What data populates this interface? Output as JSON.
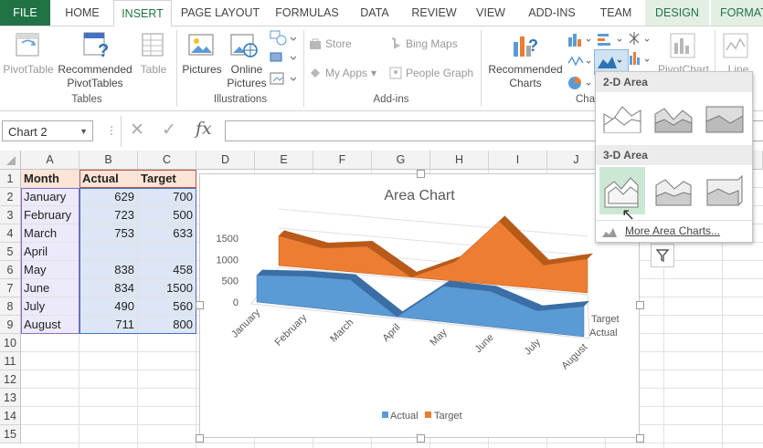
{
  "tabs": [
    "FILE",
    "HOME",
    "INSERT",
    "PAGE LAYOUT",
    "FORMULAS",
    "DATA",
    "REVIEW",
    "VIEW",
    "ADD-INS",
    "TEAM",
    "DESIGN",
    "FORMAT"
  ],
  "ribbon": {
    "tables": {
      "pivot": "PivotTable",
      "recommended_line1": "Recommended",
      "recommended_line2": "PivotTables",
      "table": "Table",
      "group": "Tables"
    },
    "illustrations": {
      "pictures": "Pictures",
      "online_line1": "Online",
      "online_line2": "Pictures",
      "group": "Illustrations"
    },
    "addins": {
      "store": "Store",
      "my_addins": "My Apps",
      "bing_maps": "Bing Maps",
      "people_graph": "People Graph",
      "group": "Add-ins"
    },
    "charts": {
      "recommended_line1": "Recommended",
      "recommended_line2": "Charts",
      "pivotchart": "PivotChart",
      "line": "Line",
      "group_partial": "Cha"
    }
  },
  "formula_bar": {
    "name_box": "Chart 2",
    "fx": "fx",
    "cancel": "✕",
    "enter": "✓"
  },
  "columns": [
    "A",
    "B",
    "C",
    "D",
    "E",
    "F",
    "G",
    "H",
    "I",
    "J",
    "K",
    "L",
    "M"
  ],
  "rows": [
    "1",
    "2",
    "3",
    "4",
    "5",
    "6",
    "7",
    "8",
    "9",
    "10",
    "11",
    "12",
    "13",
    "14",
    "15"
  ],
  "table": {
    "headers": [
      "Month",
      "Actual",
      "Target"
    ],
    "rows": [
      [
        "January",
        "629",
        "700"
      ],
      [
        "February",
        "723",
        "500"
      ],
      [
        "March",
        "753",
        "633"
      ],
      [
        "April",
        "",
        ""
      ],
      [
        "May",
        "838",
        "458"
      ],
      [
        "June",
        "834",
        "1500"
      ],
      [
        "July",
        "490",
        "560"
      ],
      [
        "August",
        "711",
        "800"
      ]
    ]
  },
  "chart_data": {
    "type": "area",
    "title": "Area Chart",
    "categories": [
      "January",
      "February",
      "March",
      "April",
      "May",
      "June",
      "July",
      "August"
    ],
    "series": [
      {
        "name": "Target",
        "values": [
          700,
          500,
          633,
          null,
          458,
          1500,
          560,
          800
        ],
        "color": "#ed7d31"
      },
      {
        "name": "Actual",
        "values": [
          629,
          723,
          753,
          null,
          838,
          834,
          490,
          711
        ],
        "color": "#5b9bd5"
      }
    ],
    "y_ticks": [
      "1500",
      "1000",
      "500",
      "0"
    ],
    "ylim": [
      0,
      1500
    ],
    "depth_labels": [
      "Target",
      "Actual"
    ],
    "legend": [
      "Actual",
      "Target"
    ],
    "legend_position": "bottom"
  },
  "dropdown": {
    "section_2d": "2-D Area",
    "section_3d": "3-D Area",
    "more": "More Area Charts..."
  }
}
